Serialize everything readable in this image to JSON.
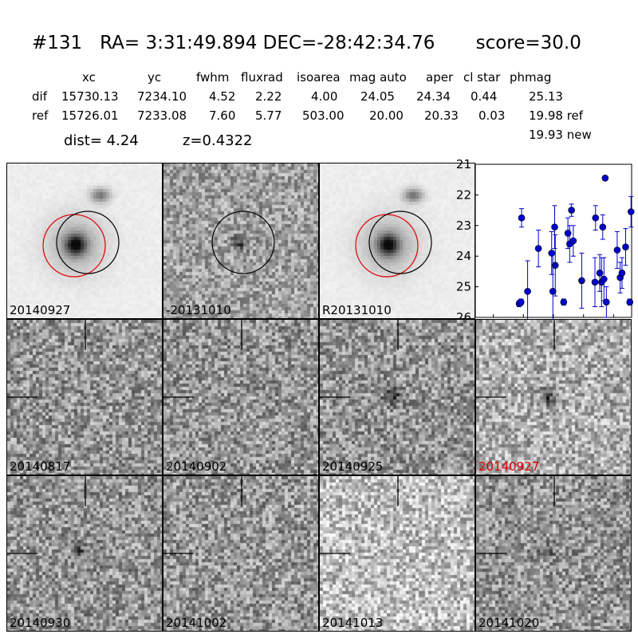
{
  "header": {
    "title": "#131   RA= 3:31:49.894 DEC=-28:42:34.76       score=30.0",
    "columns": [
      "xc",
      "yc",
      "fwhm",
      "fluxrad",
      "isoarea",
      "mag auto",
      "aper",
      "cl star",
      "phmag"
    ],
    "dif_label": "dif",
    "dif_values": [
      "15730.13",
      "7234.10",
      "4.52",
      "2.22",
      "4.00",
      "24.05",
      "24.34",
      "0.44",
      "25.13"
    ],
    "ref_label": "ref",
    "ref_values": [
      "15726.01",
      "7233.08",
      "7.60",
      "5.77",
      "503.00",
      "20.00",
      "20.33",
      "0.03",
      "19.98 ref"
    ],
    "new_phmag": "19.93 new",
    "dist": "dist=  4.24",
    "z": "z=0.4322"
  },
  "top_panels": [
    {
      "label": "20140927"
    },
    {
      "label": "-20131010"
    },
    {
      "label": "R20131010"
    }
  ],
  "stamps": [
    {
      "label": "20140817",
      "highlight": false
    },
    {
      "label": "20140902",
      "highlight": false
    },
    {
      "label": "20140925",
      "highlight": false
    },
    {
      "label": "20140927",
      "highlight": true
    },
    {
      "label": "20140930",
      "highlight": false
    },
    {
      "label": "20141002",
      "highlight": false
    },
    {
      "label": "20141013",
      "highlight": false
    },
    {
      "label": "20141020",
      "highlight": false
    }
  ],
  "colors": {
    "highlight": "#e00000",
    "points": "#0000cc",
    "ref_circle": "#e00000"
  },
  "chart_data": {
    "type": "scatter",
    "title": "",
    "xlabel": "",
    "ylabel": "",
    "xlim": [
      -130,
      130
    ],
    "ylim": [
      26,
      21
    ],
    "y_inverted": true,
    "xticks": [
      "-100",
      "-50",
      "0",
      "50",
      "100"
    ],
    "yticks": [
      "21",
      "22",
      "23",
      "24",
      "25",
      "26"
    ],
    "points": [
      {
        "x": -57,
        "y": 25.55,
        "err": 0.1
      },
      {
        "x": -54,
        "y": 25.5,
        "err": 0.1
      },
      {
        "x": -53,
        "y": 22.75,
        "err": 0.3
      },
      {
        "x": -43,
        "y": 25.15,
        "err": 1.0
      },
      {
        "x": -25,
        "y": 23.75,
        "err": 0.6
      },
      {
        "x": -3,
        "y": 23.9,
        "err": 0.7
      },
      {
        "x": -1,
        "y": 25.15,
        "err": 1.2
      },
      {
        "x": 2,
        "y": 23.05,
        "err": 0.7
      },
      {
        "x": 3,
        "y": 24.3,
        "err": 1.0
      },
      {
        "x": 17,
        "y": 25.5,
        "err": 0.1
      },
      {
        "x": 24,
        "y": 23.25,
        "err": 0.5
      },
      {
        "x": 27,
        "y": 23.6,
        "err": 0.6
      },
      {
        "x": 30,
        "y": 22.5,
        "err": 0.2
      },
      {
        "x": 33,
        "y": 23.5,
        "err": 0.5
      },
      {
        "x": 47,
        "y": 24.8,
        "err": 0.9
      },
      {
        "x": 69,
        "y": 24.85,
        "err": 0.8
      },
      {
        "x": 70,
        "y": 22.75,
        "err": 0.4
      },
      {
        "x": 77,
        "y": 24.55,
        "err": 0.6
      },
      {
        "x": 80,
        "y": 24.85,
        "err": 0.8
      },
      {
        "x": 82,
        "y": 23.05,
        "err": 0.4
      },
      {
        "x": 84,
        "y": 24.75,
        "err": 0.7
      },
      {
        "x": 86,
        "y": 21.45,
        "err": 0.05
      },
      {
        "x": 88,
        "y": 25.5,
        "err": 0.5
      },
      {
        "x": 106,
        "y": 23.8,
        "err": 0.6
      },
      {
        "x": 111,
        "y": 24.7,
        "err": 0.5
      },
      {
        "x": 114,
        "y": 24.55,
        "err": 0.5
      },
      {
        "x": 120,
        "y": 23.7,
        "err": 0.6
      },
      {
        "x": 127,
        "y": 25.5,
        "err": 0.1
      },
      {
        "x": 129,
        "y": 22.55,
        "err": 0.5
      }
    ]
  }
}
